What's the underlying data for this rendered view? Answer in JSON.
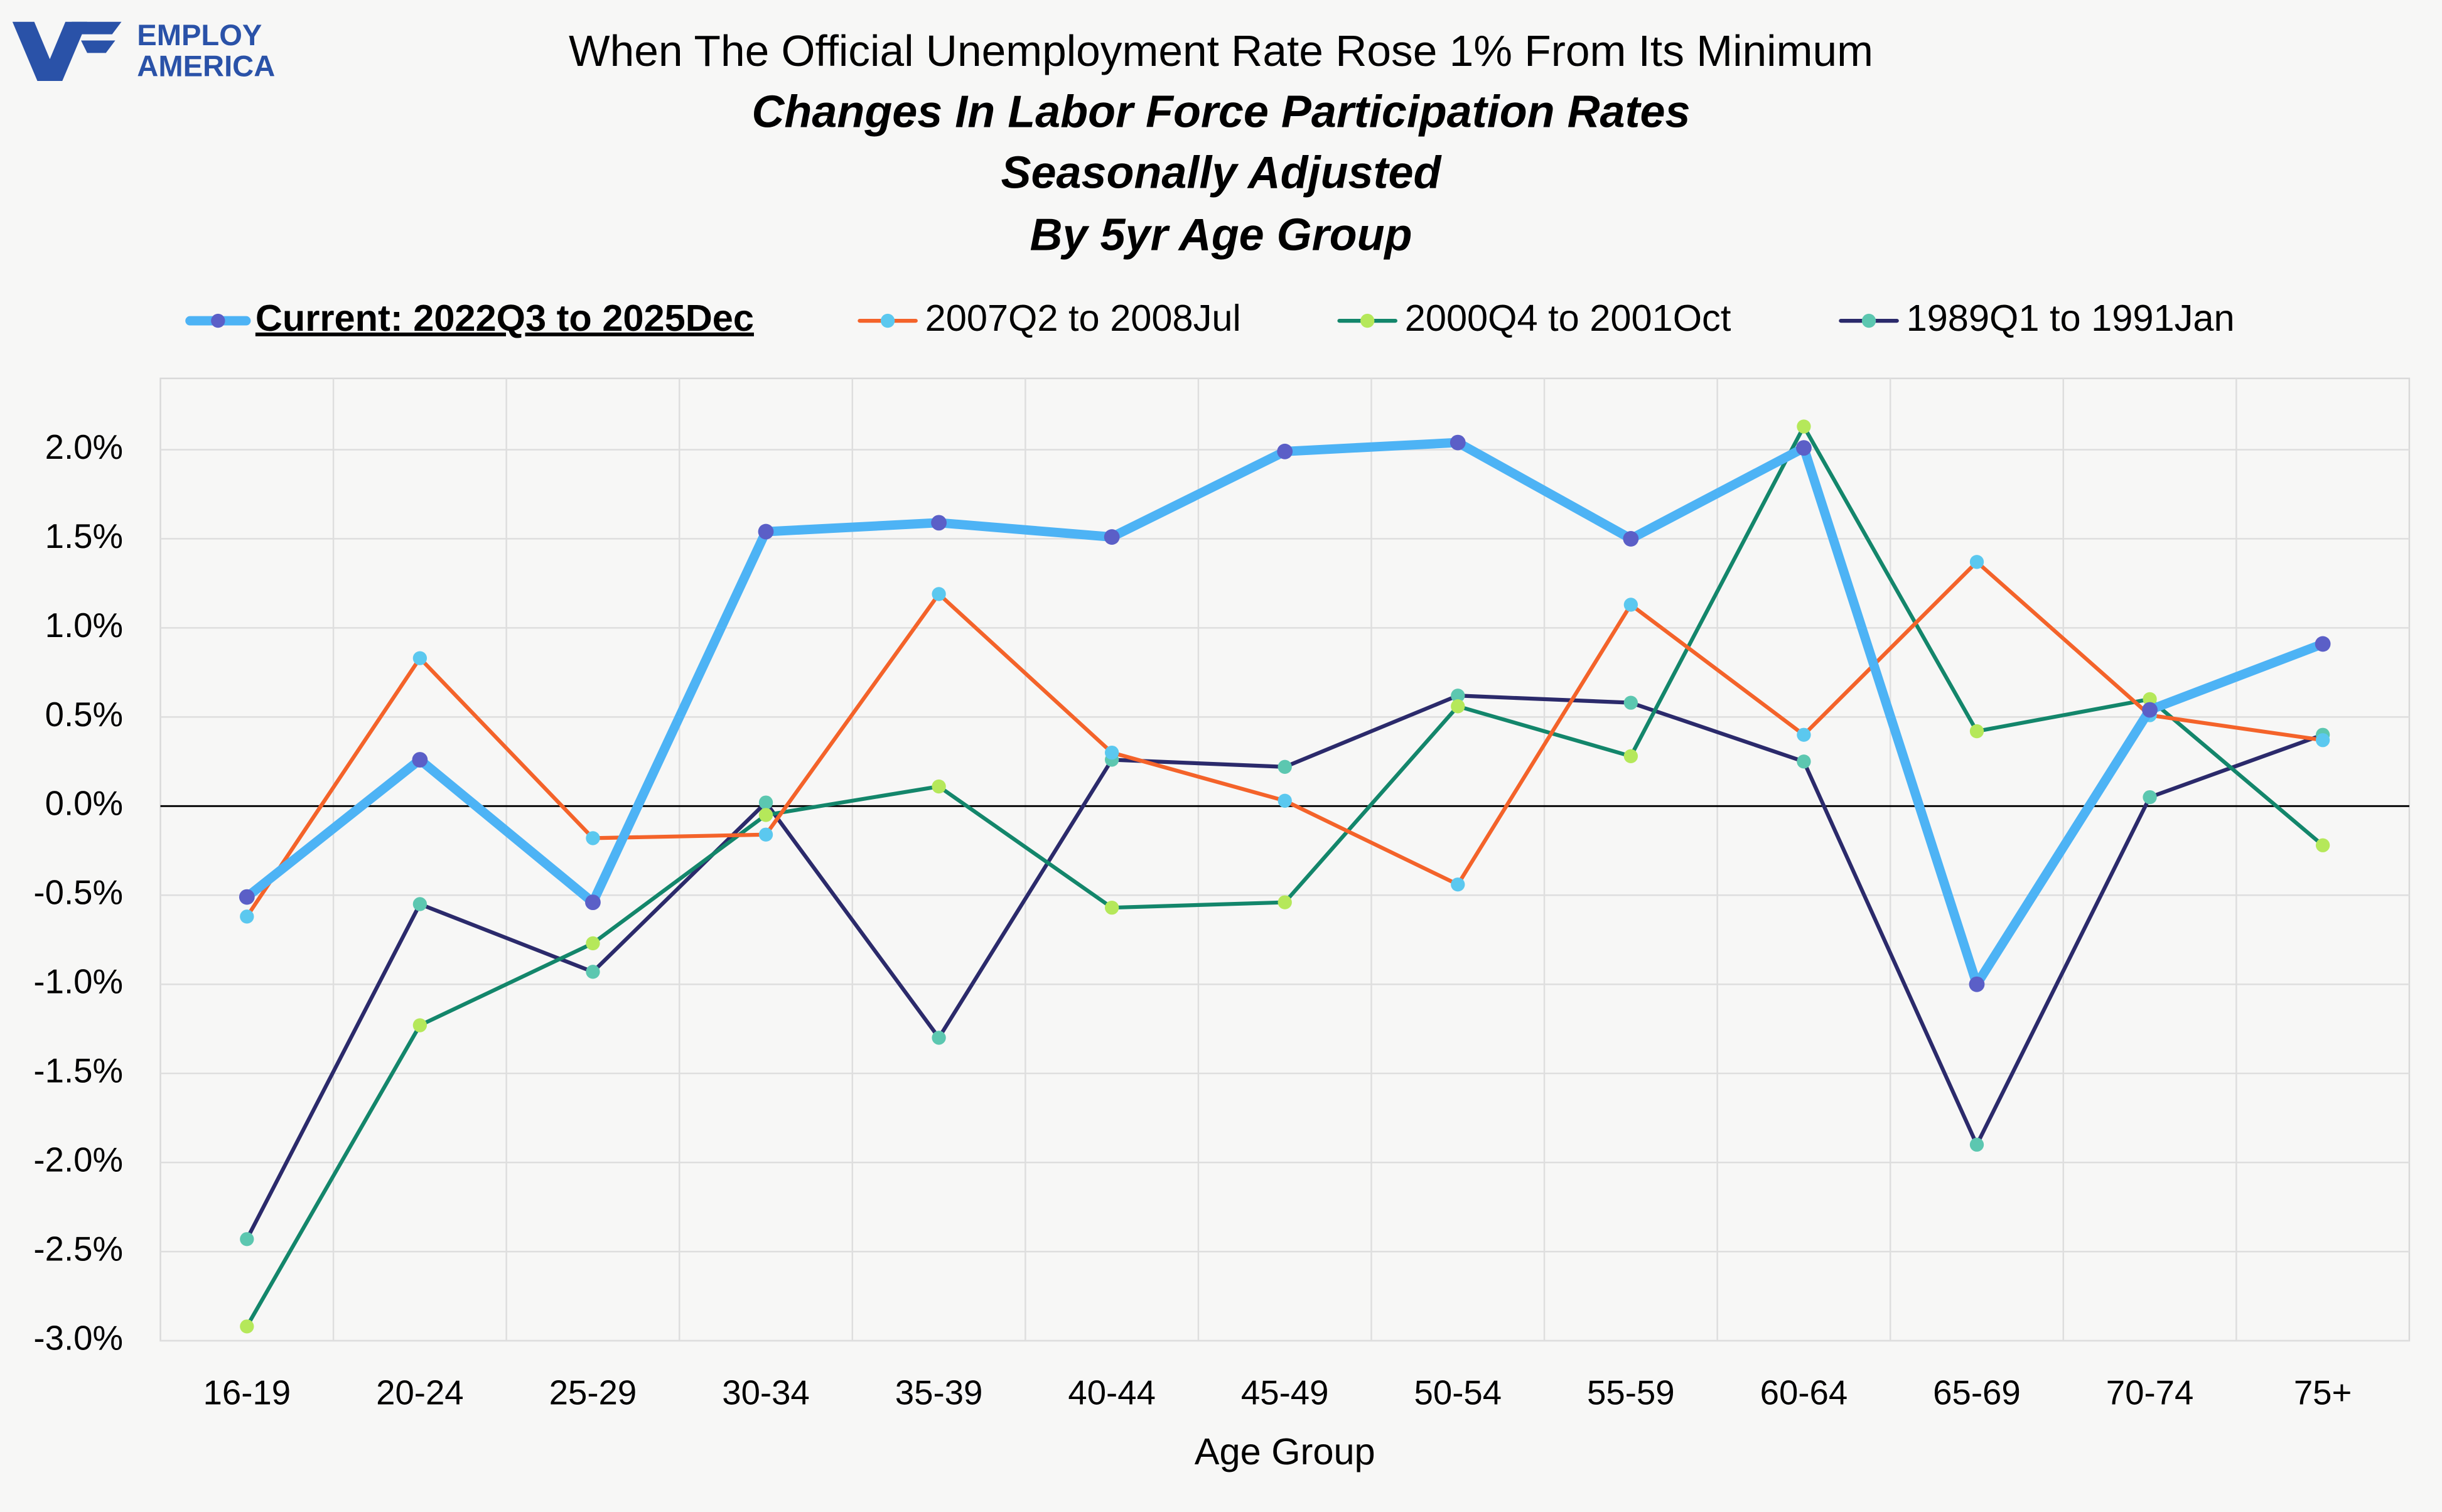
{
  "chart_data": {
    "type": "line",
    "logo_text": [
      "EMPLOY",
      "AMERICA"
    ],
    "title": "When The Official Unemployment Rate Rose 1% From Its Minimum",
    "subtitle": [
      "Changes In Labor Force Participation Rates",
      "Seasonally Adjusted",
      "By 5yr Age Group"
    ],
    "x_label": "Age Group",
    "categories": [
      "16-19",
      "20-24",
      "25-29",
      "30-34",
      "35-39",
      "40-44",
      "45-49",
      "50-54",
      "55-59",
      "60-64",
      "65-69",
      "70-74",
      "75+"
    ],
    "ylim": [
      -3.0,
      2.4
    ],
    "yticks": [
      {
        "value": -3.0,
        "label": "-3.0%"
      },
      {
        "value": -2.5,
        "label": "-2.5%"
      },
      {
        "value": -2.0,
        "label": "-2.0%"
      },
      {
        "value": -1.5,
        "label": "-1.5%"
      },
      {
        "value": -1.0,
        "label": "-1.0%"
      },
      {
        "value": -0.5,
        "label": "-0.5%"
      },
      {
        "value": 0.0,
        "label": "0.0%"
      },
      {
        "value": 0.5,
        "label": "0.5%"
      },
      {
        "value": 1.0,
        "label": "1.0%"
      },
      {
        "value": 1.5,
        "label": "1.5%"
      },
      {
        "value": 2.0,
        "label": "2.0%"
      }
    ],
    "grid": true,
    "legend": "top",
    "series": [
      {
        "name": "Current: 2022Q3 to 2025Dec",
        "color": "#4db3f5",
        "marker_color": "#5b5fc7",
        "line_width": 6,
        "values": [
          -0.51,
          0.26,
          -0.54,
          1.54,
          1.59,
          1.51,
          1.99,
          2.04,
          1.5,
          2.01,
          -1.0,
          0.54,
          0.91
        ]
      },
      {
        "name": "2007Q2 to 2008Jul",
        "color": "#f4632a",
        "marker_color": "#5bc8ef",
        "line_width": 2.5,
        "values": [
          -0.62,
          0.83,
          -0.18,
          -0.16,
          1.19,
          0.3,
          0.03,
          -0.44,
          1.13,
          0.4,
          1.37,
          0.51,
          0.37
        ]
      },
      {
        "name": "2000Q4 to 2001Oct",
        "color": "#13866b",
        "marker_color": "#b5e85a",
        "line_width": 2.5,
        "values": [
          -2.92,
          -1.23,
          -0.77,
          -0.05,
          0.11,
          -0.57,
          -0.54,
          0.56,
          0.28,
          2.13,
          0.42,
          0.6,
          -0.22
        ]
      },
      {
        "name": "1989Q1 to 1991Jan",
        "color": "#2b2a6b",
        "marker_color": "#5cc7b0",
        "line_width": 2.5,
        "values": [
          -2.43,
          -0.55,
          -0.93,
          0.02,
          -1.3,
          0.26,
          0.22,
          0.62,
          0.58,
          0.25,
          -1.9,
          0.05,
          0.4
        ]
      }
    ]
  }
}
